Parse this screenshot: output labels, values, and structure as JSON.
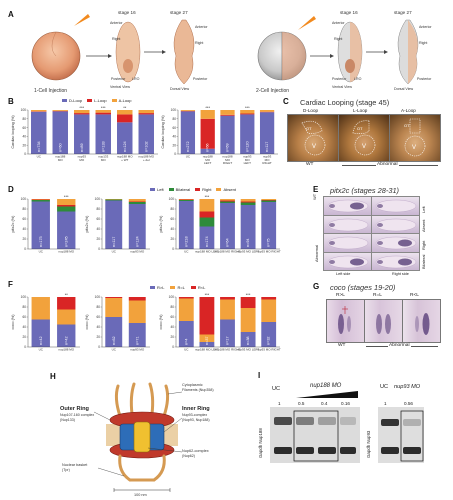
{
  "panels": {
    "A": {
      "letter": "A",
      "one_cell_label": "1-Cell Injection",
      "two_cell_label": "2-Cell Injection",
      "stage16": "stage 16",
      "stage27": "stage 27",
      "anterior": "Anterior",
      "posterior": "Posterior",
      "right": "Right",
      "lro": "LRO",
      "ventral_view": "Ventral View",
      "dorsal_view": "Dorsal View"
    },
    "B": {
      "letter": "B"
    },
    "C": {
      "letter": "C",
      "title": "Cardiac Looping (stage 45)",
      "labels": [
        "D-Loop",
        "L-Loop",
        "A-Loop"
      ],
      "ot": "OT",
      "v": "V",
      "wt": "WT",
      "abnormal": "Abnormal"
    },
    "D": {
      "letter": "D"
    },
    "E": {
      "letter": "E",
      "title": "pitx2c (stages 28-31)",
      "side_labels": [
        "Left",
        "Absent",
        "Right",
        "Bilateral"
      ],
      "wt": "WT",
      "abnormal": "Abnormal",
      "left_side": "Left side",
      "right_side": "Right side"
    },
    "F": {
      "letter": "F"
    },
    "G": {
      "letter": "G",
      "title": "coco (stages 19-20)",
      "labels": [
        "R>L",
        "R=L",
        "R<L"
      ],
      "wt": "WT",
      "abnormal": "Abnormal"
    },
    "H": {
      "letter": "H",
      "outer_ring": "Outer Ring",
      "outer_sub": "Nup107-160 complex",
      "outer_sub2": "(Nup133)",
      "inner_ring": "Inner Ring",
      "inner_sub": "Nup93-complex",
      "inner_sub2": "(Nup93, Nup188)",
      "cyto": "Cytoplasmic",
      "cyto2": "Filaments (Nup358)",
      "nup62": "Nup62-complex",
      "nup62b": "(Nup62)",
      "basket": "Nuclear basket",
      "basket2": "(Tpr)",
      "scale": "100 nm"
    },
    "I": {
      "letter": "I",
      "uc": "UC",
      "mo_label": "nup188 MO",
      "uc2": "UC",
      "mo2_label": "nup93 MO",
      "doses": [
        "1",
        "0.5",
        "0.4",
        "0.16"
      ],
      "dose2": "0.56",
      "ylabel_left": "Gapdh  Nup188",
      "ylabel_right": "Gapdh  Nup93"
    }
  },
  "colors": {
    "blue": "#6a6ab8",
    "red": "#d92525",
    "orange": "#f2a23c",
    "green": "#2e8b3a",
    "grey": "#9a9a9a"
  },
  "chart_data": [
    {
      "id": "B1",
      "type": "bar",
      "stacked": true,
      "ylabel": "Cardiac looping (%)",
      "ylim": [
        0,
        100
      ],
      "legend": [
        "D-Loop",
        "L-Loop",
        "A-Loop"
      ],
      "categories": [
        "UC",
        "nup188 MO",
        "nup93 MO",
        "nup133 MO",
        "nup188 MO + WT",
        "nup188 MO + nup188 del"
      ],
      "category_labels": [
        "UC",
        "nup188\nMO",
        "nup93\nMO",
        "nup133\nMO",
        "nup188 MO\n+ WT",
        "nup188 MO\n+ del"
      ],
      "n": [
        "n=734",
        "n=60",
        "n=89",
        "n=133",
        "n=124",
        "n=102"
      ],
      "sig": [
        "",
        "",
        "***",
        "***",
        "**",
        ""
      ],
      "series": [
        {
          "name": "D-Loop",
          "values": [
            96,
            97,
            90,
            90,
            72,
            90
          ]
        },
        {
          "name": "L-Loop",
          "values": [
            1,
            1,
            3,
            4,
            18,
            3
          ]
        },
        {
          "name": "A-Loop",
          "values": [
            3,
            2,
            7,
            6,
            10,
            7
          ]
        }
      ]
    },
    {
      "id": "B2",
      "type": "bar",
      "stacked": true,
      "ylabel": "Cardiac looping (%)",
      "ylim": [
        0,
        100
      ],
      "categories": [
        "UC",
        "nup188 MO LEFT",
        "nup188 MO RIGHT",
        "nup93 MO LEFT",
        "nup93 MO RIGHT"
      ],
      "category_labels": [
        "UC",
        "nup188\nMO\nLEFT",
        "nup188\nMO\nRIGHT",
        "nup93\nMO\nLEFT",
        "nup93\nMO\nRIGHT"
      ],
      "n": [
        "n=272",
        "n=66",
        "n=69",
        "n=120",
        "n=117"
      ],
      "sig": [
        "",
        "***",
        "",
        "***",
        ""
      ],
      "series": [
        {
          "name": "D-Loop",
          "values": [
            97,
            12,
            87,
            90,
            95
          ]
        },
        {
          "name": "L-Loop",
          "values": [
            1,
            68,
            2,
            2,
            1
          ]
        },
        {
          "name": "A-Loop",
          "values": [
            2,
            20,
            11,
            8,
            4
          ]
        }
      ]
    },
    {
      "id": "D1",
      "type": "bar",
      "stacked": true,
      "ylabel": "pitx2c (%)",
      "ylim": [
        0,
        100
      ],
      "legend": [
        "Left",
        "Bilateral",
        "Right",
        "Absent"
      ],
      "categories": [
        "UC",
        "nup188 MO"
      ],
      "n": [
        "n=175",
        "n=245"
      ],
      "sig": [
        "",
        "***"
      ],
      "series": [
        {
          "name": "Left",
          "values": [
            95,
            75
          ]
        },
        {
          "name": "Bilateral",
          "values": [
            3,
            10
          ]
        },
        {
          "name": "Right",
          "values": [
            1,
            3
          ]
        },
        {
          "name": "Absent",
          "values": [
            1,
            12
          ]
        }
      ]
    },
    {
      "id": "D2",
      "type": "bar",
      "stacked": true,
      "ylabel": "pitx2c (%)",
      "ylim": [
        0,
        100
      ],
      "categories": [
        "UC",
        "nup93 MO"
      ],
      "n": [
        "n=117",
        "n=124"
      ],
      "sig": [
        "",
        ""
      ],
      "series": [
        {
          "name": "Left",
          "values": [
            97,
            90
          ]
        },
        {
          "name": "Bilateral",
          "values": [
            2,
            4
          ]
        },
        {
          "name": "Right",
          "values": [
            0,
            1
          ]
        },
        {
          "name": "Absent",
          "values": [
            1,
            5
          ]
        }
      ]
    },
    {
      "id": "D3",
      "type": "bar",
      "stacked": true,
      "ylabel": "pitx2c (%)",
      "ylim": [
        0,
        100
      ],
      "categories": [
        "UC",
        "nup188 MO LEFT",
        "nup188 MO RIGHT",
        "nup93 MO LEFT",
        "nup93 MO RIGHT"
      ],
      "n": [
        "n=218",
        "n=174",
        "n=64",
        "n=94",
        "n=75"
      ],
      "sig": [
        "",
        "***",
        "",
        "",
        ""
      ],
      "series": [
        {
          "name": "Left",
          "values": [
            96,
            45,
            92,
            88,
            94
          ]
        },
        {
          "name": "Bilateral",
          "values": [
            2,
            18,
            3,
            5,
            3
          ]
        },
        {
          "name": "Right",
          "values": [
            1,
            12,
            2,
            2,
            1
          ]
        },
        {
          "name": "Absent",
          "values": [
            1,
            25,
            3,
            5,
            2
          ]
        }
      ]
    },
    {
      "id": "F1",
      "type": "bar",
      "stacked": true,
      "ylabel": "coco (%)",
      "ylim": [
        0,
        100
      ],
      "legend": [
        "R>L",
        "R=L",
        "R<L"
      ],
      "categories": [
        "UC",
        "nup188 MO"
      ],
      "n": [
        "n=42",
        "n=42"
      ],
      "sig": [
        "",
        "**"
      ],
      "series": [
        {
          "name": "R>L",
          "values": [
            55,
            45
          ]
        },
        {
          "name": "R=L",
          "values": [
            45,
            30
          ]
        },
        {
          "name": "R<L",
          "values": [
            0,
            25
          ]
        }
      ]
    },
    {
      "id": "F2",
      "type": "bar",
      "stacked": true,
      "ylabel": "coco (%)",
      "ylim": [
        0,
        100
      ],
      "categories": [
        "UC",
        "nup93 MO"
      ],
      "n": [
        "n=62",
        "n=71"
      ],
      "sig": [
        "",
        ""
      ],
      "series": [
        {
          "name": "R>L",
          "values": [
            60,
            48
          ]
        },
        {
          "name": "R=L",
          "values": [
            38,
            45
          ]
        },
        {
          "name": "R<L",
          "values": [
            2,
            7
          ]
        }
      ]
    },
    {
      "id": "F3",
      "type": "bar",
      "stacked": true,
      "ylabel": "coco (%)",
      "ylim": [
        0,
        100
      ],
      "categories": [
        "UC",
        "nup188 MO LEFT",
        "nup188 MO RIGHT",
        "nup93 MO LEFT",
        "nup93 MO RIGHT"
      ],
      "n": [
        "n=4",
        "n=37",
        "n=17",
        "n=38",
        "n=32"
      ],
      "sig": [
        "",
        "***",
        "",
        "***",
        ""
      ],
      "series": [
        {
          "name": "R>L",
          "values": [
            52,
            10,
            55,
            30,
            50
          ]
        },
        {
          "name": "R=L",
          "values": [
            45,
            15,
            40,
            48,
            45
          ]
        },
        {
          "name": "R<L",
          "values": [
            3,
            75,
            5,
            22,
            5
          ]
        }
      ]
    }
  ]
}
